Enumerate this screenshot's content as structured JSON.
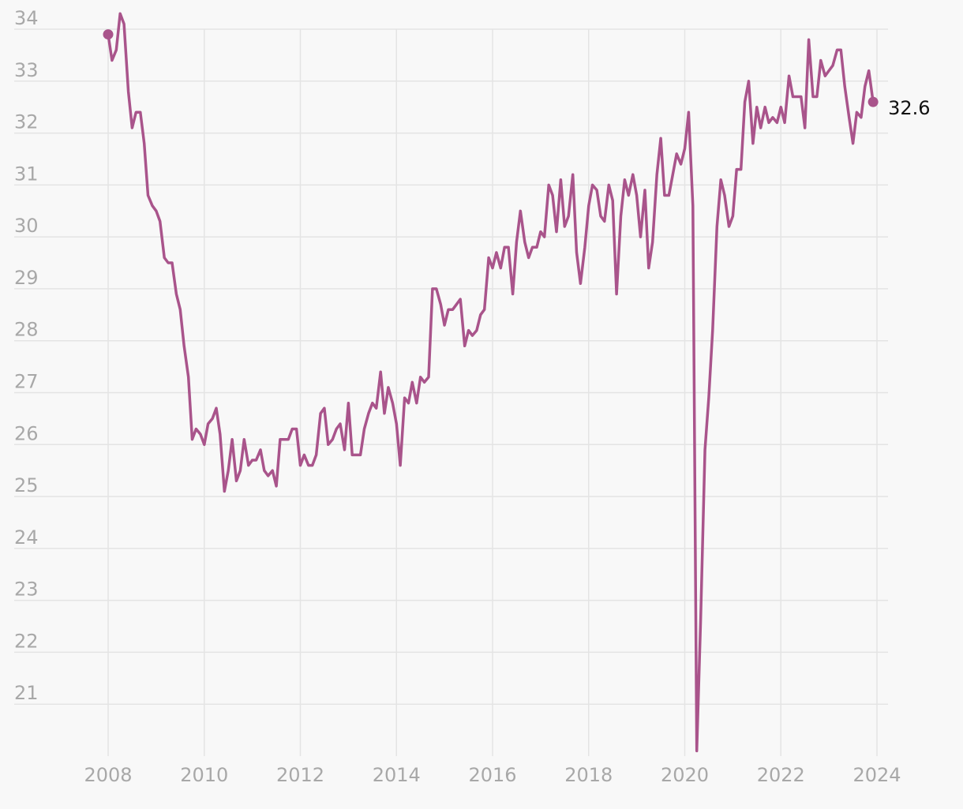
{
  "chart_data": {
    "type": "line",
    "title": "",
    "xlabel": "",
    "ylabel": "",
    "xlim": [
      2008,
      2024
    ],
    "ylim": [
      20,
      34
    ],
    "y_ticks": [
      "34",
      "33",
      "32",
      "31",
      "30",
      "29",
      "28",
      "27",
      "26",
      "25",
      "24",
      "23",
      "22",
      "21"
    ],
    "x_ticks": [
      "2008",
      "2010",
      "2012",
      "2014",
      "2016",
      "2018",
      "2020",
      "2022",
      "2024"
    ],
    "grid": true,
    "line_color": "#a9548b",
    "end_label": "32.6",
    "series": [
      {
        "values": [
          [
            2008.0,
            33.9
          ],
          [
            2008.08,
            33.4
          ],
          [
            2008.17,
            33.6
          ],
          [
            2008.25,
            34.3
          ],
          [
            2008.33,
            34.1
          ],
          [
            2008.42,
            32.8
          ],
          [
            2008.5,
            32.1
          ],
          [
            2008.58,
            32.4
          ],
          [
            2008.67,
            32.4
          ],
          [
            2008.75,
            31.8
          ],
          [
            2008.83,
            30.8
          ],
          [
            2008.92,
            30.6
          ],
          [
            2009.0,
            30.5
          ],
          [
            2009.08,
            30.3
          ],
          [
            2009.17,
            29.6
          ],
          [
            2009.25,
            29.5
          ],
          [
            2009.33,
            29.5
          ],
          [
            2009.42,
            28.9
          ],
          [
            2009.5,
            28.6
          ],
          [
            2009.58,
            27.9
          ],
          [
            2009.67,
            27.3
          ],
          [
            2009.75,
            26.1
          ],
          [
            2009.83,
            26.3
          ],
          [
            2009.92,
            26.2
          ],
          [
            2010.0,
            26.0
          ],
          [
            2010.08,
            26.4
          ],
          [
            2010.17,
            26.5
          ],
          [
            2010.25,
            26.7
          ],
          [
            2010.33,
            26.2
          ],
          [
            2010.42,
            25.1
          ],
          [
            2010.5,
            25.5
          ],
          [
            2010.58,
            26.1
          ],
          [
            2010.67,
            25.3
          ],
          [
            2010.75,
            25.5
          ],
          [
            2010.83,
            26.1
          ],
          [
            2010.92,
            25.6
          ],
          [
            2011.0,
            25.7
          ],
          [
            2011.08,
            25.7
          ],
          [
            2011.17,
            25.9
          ],
          [
            2011.25,
            25.5
          ],
          [
            2011.33,
            25.4
          ],
          [
            2011.42,
            25.5
          ],
          [
            2011.5,
            25.2
          ],
          [
            2011.58,
            26.1
          ],
          [
            2011.67,
            26.1
          ],
          [
            2011.75,
            26.1
          ],
          [
            2011.83,
            26.3
          ],
          [
            2011.92,
            26.3
          ],
          [
            2012.0,
            25.6
          ],
          [
            2012.08,
            25.8
          ],
          [
            2012.17,
            25.6
          ],
          [
            2012.25,
            25.6
          ],
          [
            2012.33,
            25.8
          ],
          [
            2012.42,
            26.6
          ],
          [
            2012.5,
            26.7
          ],
          [
            2012.58,
            26.0
          ],
          [
            2012.67,
            26.1
          ],
          [
            2012.75,
            26.3
          ],
          [
            2012.83,
            26.4
          ],
          [
            2012.92,
            25.9
          ],
          [
            2013.0,
            26.8
          ],
          [
            2013.08,
            25.8
          ],
          [
            2013.17,
            25.8
          ],
          [
            2013.25,
            25.8
          ],
          [
            2013.33,
            26.3
          ],
          [
            2013.42,
            26.6
          ],
          [
            2013.5,
            26.8
          ],
          [
            2013.58,
            26.7
          ],
          [
            2013.67,
            27.4
          ],
          [
            2013.75,
            26.6
          ],
          [
            2013.83,
            27.1
          ],
          [
            2013.92,
            26.8
          ],
          [
            2014.0,
            26.4
          ],
          [
            2014.08,
            25.6
          ],
          [
            2014.17,
            26.9
          ],
          [
            2014.25,
            26.8
          ],
          [
            2014.33,
            27.2
          ],
          [
            2014.42,
            26.8
          ],
          [
            2014.5,
            27.3
          ],
          [
            2014.58,
            27.2
          ],
          [
            2014.67,
            27.3
          ],
          [
            2014.75,
            29.0
          ],
          [
            2014.83,
            29.0
          ],
          [
            2014.92,
            28.7
          ],
          [
            2015.0,
            28.3
          ],
          [
            2015.08,
            28.6
          ],
          [
            2015.17,
            28.6
          ],
          [
            2015.25,
            28.7
          ],
          [
            2015.33,
            28.8
          ],
          [
            2015.42,
            27.9
          ],
          [
            2015.5,
            28.2
          ],
          [
            2015.58,
            28.1
          ],
          [
            2015.67,
            28.2
          ],
          [
            2015.75,
            28.5
          ],
          [
            2015.83,
            28.6
          ],
          [
            2015.92,
            29.6
          ],
          [
            2016.0,
            29.4
          ],
          [
            2016.08,
            29.7
          ],
          [
            2016.17,
            29.4
          ],
          [
            2016.25,
            29.8
          ],
          [
            2016.33,
            29.8
          ],
          [
            2016.42,
            28.9
          ],
          [
            2016.5,
            29.9
          ],
          [
            2016.58,
            30.5
          ],
          [
            2016.67,
            29.9
          ],
          [
            2016.75,
            29.6
          ],
          [
            2016.83,
            29.8
          ],
          [
            2016.92,
            29.8
          ],
          [
            2017.0,
            30.1
          ],
          [
            2017.08,
            30.0
          ],
          [
            2017.17,
            31.0
          ],
          [
            2017.25,
            30.8
          ],
          [
            2017.33,
            30.1
          ],
          [
            2017.42,
            31.1
          ],
          [
            2017.5,
            30.2
          ],
          [
            2017.58,
            30.4
          ],
          [
            2017.67,
            31.2
          ],
          [
            2017.75,
            29.7
          ],
          [
            2017.83,
            29.1
          ],
          [
            2017.92,
            29.8
          ],
          [
            2018.0,
            30.6
          ],
          [
            2018.08,
            31.0
          ],
          [
            2018.17,
            30.9
          ],
          [
            2018.25,
            30.4
          ],
          [
            2018.33,
            30.3
          ],
          [
            2018.42,
            31.0
          ],
          [
            2018.5,
            30.7
          ],
          [
            2018.58,
            28.9
          ],
          [
            2018.67,
            30.4
          ],
          [
            2018.75,
            31.1
          ],
          [
            2018.83,
            30.8
          ],
          [
            2018.92,
            31.2
          ],
          [
            2019.0,
            30.8
          ],
          [
            2019.08,
            30.0
          ],
          [
            2019.17,
            30.9
          ],
          [
            2019.25,
            29.4
          ],
          [
            2019.33,
            29.9
          ],
          [
            2019.42,
            31.2
          ],
          [
            2019.5,
            31.9
          ],
          [
            2019.58,
            30.8
          ],
          [
            2019.67,
            30.8
          ],
          [
            2019.75,
            31.2
          ],
          [
            2019.83,
            31.6
          ],
          [
            2019.92,
            31.4
          ],
          [
            2020.0,
            31.7
          ],
          [
            2020.08,
            32.4
          ],
          [
            2020.17,
            30.6
          ],
          [
            2020.25,
            20.1
          ],
          [
            2020.33,
            22.6
          ],
          [
            2020.42,
            25.9
          ],
          [
            2020.5,
            26.9
          ],
          [
            2020.58,
            28.2
          ],
          [
            2020.67,
            30.2
          ],
          [
            2020.75,
            31.1
          ],
          [
            2020.83,
            30.8
          ],
          [
            2020.92,
            30.2
          ],
          [
            2021.0,
            30.4
          ],
          [
            2021.08,
            31.3
          ],
          [
            2021.17,
            31.3
          ],
          [
            2021.25,
            32.6
          ],
          [
            2021.33,
            33.0
          ],
          [
            2021.42,
            31.8
          ],
          [
            2021.5,
            32.5
          ],
          [
            2021.58,
            32.1
          ],
          [
            2021.67,
            32.5
          ],
          [
            2021.75,
            32.2
          ],
          [
            2021.83,
            32.3
          ],
          [
            2021.92,
            32.2
          ],
          [
            2022.0,
            32.5
          ],
          [
            2022.08,
            32.2
          ],
          [
            2022.17,
            33.1
          ],
          [
            2022.25,
            32.7
          ],
          [
            2022.33,
            32.7
          ],
          [
            2022.42,
            32.7
          ],
          [
            2022.5,
            32.1
          ],
          [
            2022.58,
            33.8
          ],
          [
            2022.67,
            32.7
          ],
          [
            2022.75,
            32.7
          ],
          [
            2022.83,
            33.4
          ],
          [
            2022.92,
            33.1
          ],
          [
            2023.0,
            33.2
          ],
          [
            2023.08,
            33.3
          ],
          [
            2023.17,
            33.6
          ],
          [
            2023.25,
            33.6
          ],
          [
            2023.33,
            32.9
          ],
          [
            2023.42,
            32.3
          ],
          [
            2023.5,
            31.8
          ],
          [
            2023.58,
            32.4
          ],
          [
            2023.67,
            32.3
          ],
          [
            2023.75,
            32.9
          ],
          [
            2023.83,
            33.2
          ],
          [
            2023.92,
            32.6
          ]
        ]
      }
    ]
  }
}
